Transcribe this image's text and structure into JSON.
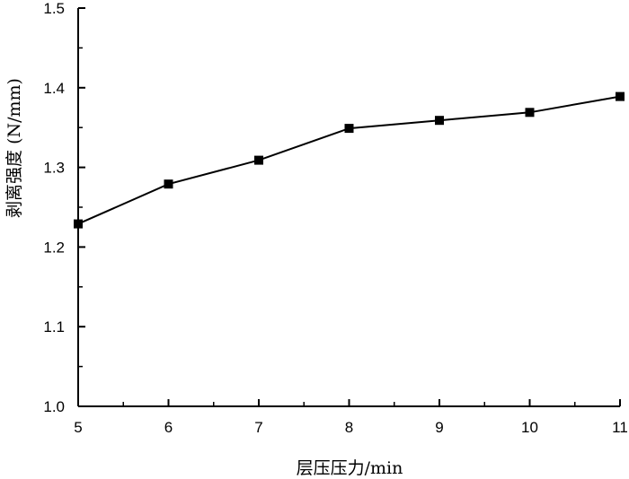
{
  "chart_data": {
    "type": "line",
    "xlabel": "层压压力/min",
    "ylabel": "剥离强度 (N/mm)",
    "xlim": [
      5,
      11
    ],
    "ylim": [
      1.0,
      1.5
    ],
    "x_ticks": [
      "5",
      "6",
      "7",
      "8",
      "9",
      "10",
      "11"
    ],
    "y_ticks": [
      "1.0",
      "1.1",
      "1.2",
      "1.3",
      "1.4",
      "1.5"
    ],
    "grid": false,
    "series": [
      {
        "x": [
          5,
          6,
          7,
          8,
          9,
          10,
          11
        ],
        "y": [
          1.229,
          1.279,
          1.309,
          1.349,
          1.359,
          1.369,
          1.389
        ],
        "marker": "square",
        "color": "#000000"
      }
    ]
  }
}
